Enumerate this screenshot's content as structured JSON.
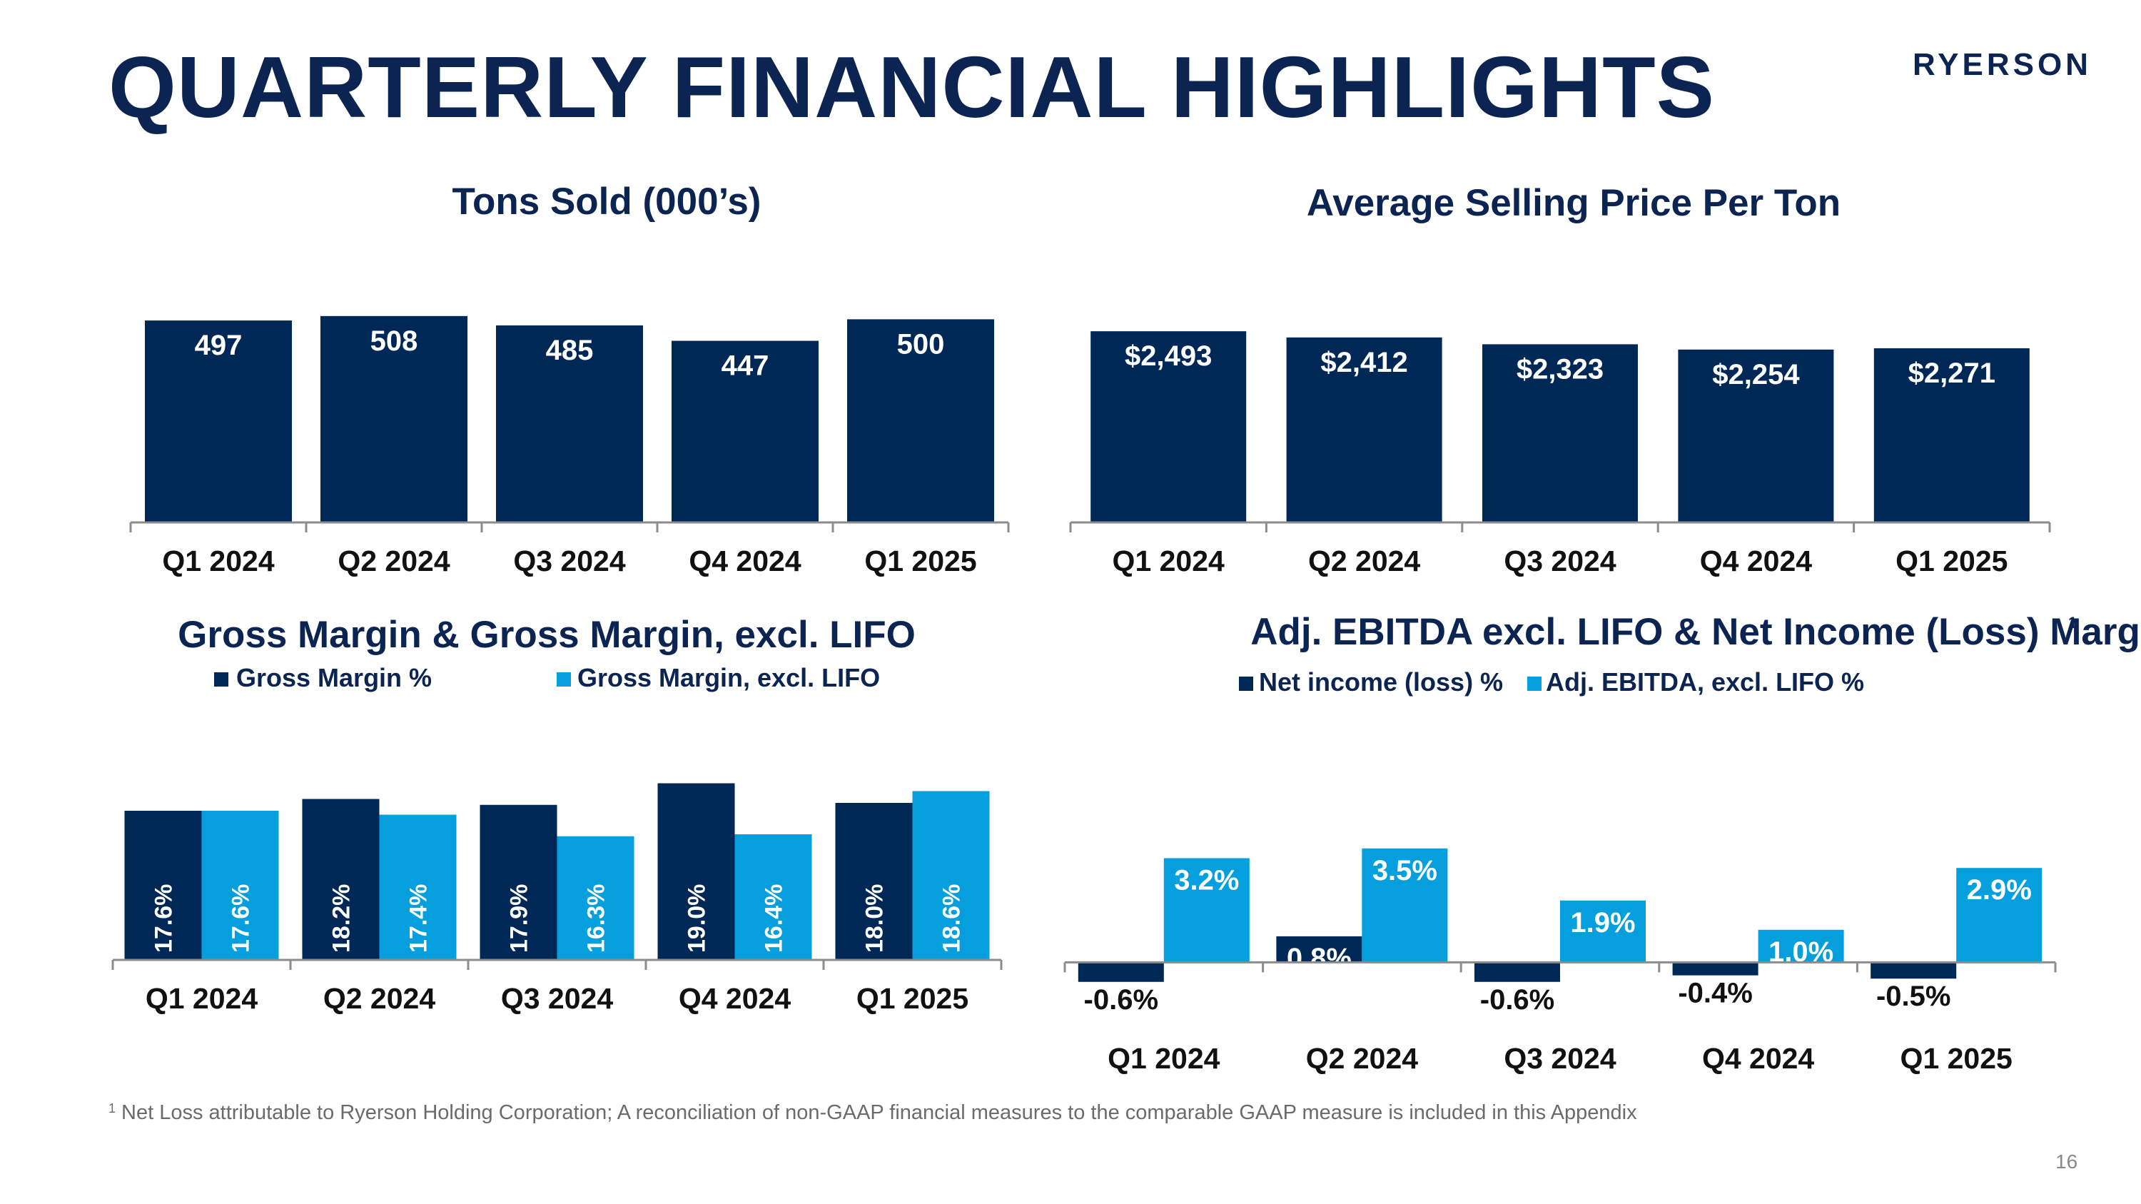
{
  "page": {
    "title": "QUARTERLY FINANCIAL HIGHLIGHTS",
    "logo": "RYERSON",
    "footnote_marker": "1",
    "footnote": "Net Loss attributable to Ryerson Holding Corporation; A reconciliation of non-GAAP financial measures to the comparable GAAP measure is included in this Appendix",
    "page_number": "16"
  },
  "colors": {
    "navy": "#002856",
    "light_blue": "#049fdc",
    "title": "#0b2452",
    "axis": "#8c8c8c",
    "label_dark": "#111111",
    "label_white": "#ffffff"
  },
  "chart_data": [
    {
      "type": "bar",
      "title": "Tons Sold (000’s)",
      "categories": [
        "Q1 2024",
        "Q2 2024",
        "Q3 2024",
        "Q4 2024",
        "Q1 2025"
      ],
      "series": [
        {
          "values": [
            497,
            508,
            485,
            447,
            500
          ],
          "labels": [
            "497",
            "508",
            "485",
            "447",
            "500"
          ]
        }
      ],
      "ylim": [
        0,
        520
      ],
      "grid": false,
      "legend": "none"
    },
    {
      "type": "bar",
      "title": "Average Selling Price Per Ton",
      "categories": [
        "Q1 2024",
        "Q2 2024",
        "Q3 2024",
        "Q4 2024",
        "Q1 2025"
      ],
      "series": [
        {
          "values": [
            2493,
            2412,
            2323,
            2254,
            2271
          ],
          "labels": [
            "$2,493",
            "$2,412",
            "$2,323",
            "$2,254",
            "$2,271"
          ]
        }
      ],
      "ylim": [
        0,
        2550
      ],
      "grid": false,
      "legend": "none"
    },
    {
      "type": "bar",
      "title": "Gross Margin & Gross Margin, excl. LIFO",
      "categories": [
        "Q1 2024",
        "Q2 2024",
        "Q3 2024",
        "Q4 2024",
        "Q1 2025"
      ],
      "series": [
        {
          "name": "Gross Margin %",
          "values": [
            17.6,
            18.2,
            17.9,
            19.0,
            18.0
          ],
          "labels": [
            "17.6%",
            "18.2%",
            "17.9%",
            "19.0%",
            "18.0%"
          ]
        },
        {
          "name": "Gross Margin, excl. LIFO",
          "values": [
            17.6,
            17.4,
            16.3,
            16.4,
            18.6
          ],
          "labels": [
            "17.6%",
            "17.4%",
            "16.3%",
            "16.4%",
            "18.6%"
          ]
        }
      ],
      "ylim": [
        10,
        20
      ],
      "grid": false,
      "legend": "top"
    },
    {
      "type": "bar",
      "title": "Adj. EBITDA excl. LIFO & Net Income (Loss) Margin %",
      "title_marker": "1",
      "categories": [
        "Q1 2024",
        "Q2 2024",
        "Q3 2024",
        "Q4 2024",
        "Q1 2025"
      ],
      "series": [
        {
          "name": "Net income (loss) %",
          "values": [
            -0.6,
            0.8,
            -0.6,
            -0.4,
            -0.5
          ],
          "labels": [
            "-0.6%",
            "0.8%",
            "-0.6%",
            "-0.4%",
            "-0.5%"
          ]
        },
        {
          "name": "Adj. EBITDA, excl. LIFO %",
          "values": [
            3.2,
            3.5,
            1.9,
            1.0,
            2.9
          ],
          "labels": [
            "3.2%",
            "3.5%",
            "1.9%",
            "1.0%",
            "2.9%"
          ]
        }
      ],
      "ylim": [
        -1,
        4
      ],
      "grid": false,
      "legend": "top"
    }
  ]
}
